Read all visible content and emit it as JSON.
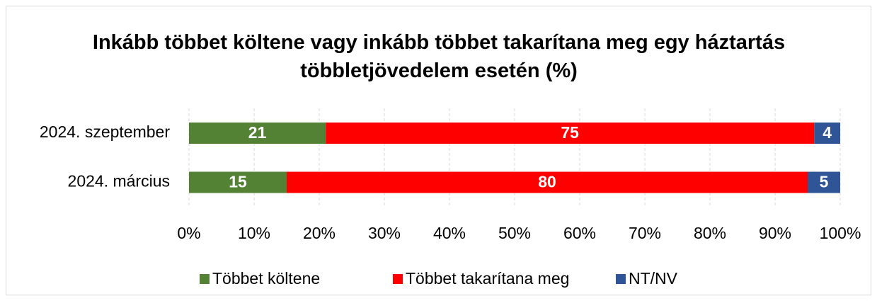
{
  "chart_data": {
    "type": "stacked_bar_horizontal",
    "title": "Inkább többet költene vagy inkább többet takarítana meg egy háztartás többletjövedelem esetén (%)",
    "categories": [
      "2024. szeptember",
      "2024. március"
    ],
    "series": [
      {
        "name": "Többet költene",
        "color": "#548235",
        "values": [
          21,
          15
        ]
      },
      {
        "name": "Többet takarítana meg",
        "color": "#ff0000",
        "values": [
          75,
          80
        ]
      },
      {
        "name": "NT/NV",
        "color": "#2f5597",
        "values": [
          4,
          5
        ]
      }
    ],
    "xlim": [
      0,
      100
    ],
    "xticks": [
      {
        "value": 0,
        "label": "0%"
      },
      {
        "value": 10,
        "label": "10%"
      },
      {
        "value": 20,
        "label": "20%"
      },
      {
        "value": 30,
        "label": "30%"
      },
      {
        "value": 40,
        "label": "40%"
      },
      {
        "value": 50,
        "label": "50%"
      },
      {
        "value": 60,
        "label": "60%"
      },
      {
        "value": 70,
        "label": "70%"
      },
      {
        "value": 80,
        "label": "80%"
      },
      {
        "value": 90,
        "label": "90%"
      },
      {
        "value": 100,
        "label": "100%"
      }
    ],
    "grid": true,
    "legend": "bottom"
  }
}
